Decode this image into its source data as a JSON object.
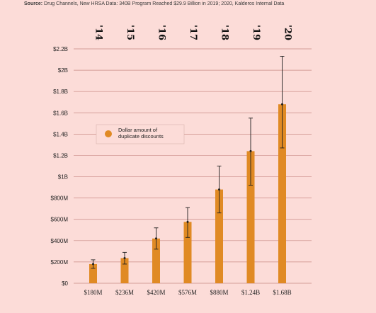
{
  "source": {
    "label": "Source:",
    "text": "Drug Channels, New HRSA Data: 340B Program Reached $29.9 Billion in 2019; 2020, Kalderos Internal Data"
  },
  "colors": {
    "background": "#fcdcd8",
    "bar": "#e08a24",
    "grid": "#c98a84",
    "error": "#1e1e1e"
  },
  "chart_data": {
    "type": "bar",
    "categories": [
      "'14",
      "'15",
      "'16",
      "'17",
      "'18",
      "'19",
      "'20"
    ],
    "category_position": "top",
    "x_tick_labels": [
      "$180M",
      "$236M",
      "$420M",
      "$576M",
      "$880M",
      "$1.24B",
      "$1.68B"
    ],
    "values": [
      180,
      236,
      420,
      576,
      880,
      1240,
      1680
    ],
    "error_low": [
      140,
      180,
      320,
      430,
      660,
      920,
      1270
    ],
    "error_high": [
      220,
      290,
      520,
      710,
      1100,
      1550,
      2130
    ],
    "unit": "millions of dollars",
    "ylim": [
      0,
      2200
    ],
    "yticks": [
      0,
      200,
      400,
      600,
      800,
      1000,
      1200,
      1400,
      1600,
      1800,
      2000,
      2200
    ],
    "ytick_labels": [
      "$0",
      "$200M",
      "$400M",
      "$600M",
      "$800M",
      "$1B",
      "$1.2B",
      "$1.4B",
      "$1.6B",
      "$1.8B",
      "$2B",
      "$2.2B"
    ],
    "legend": {
      "entries": [
        "Dollar amount of duplicate discounts"
      ],
      "lines": [
        "Dollar amount of",
        "duplicate discounts"
      ],
      "placement": "upper-left"
    },
    "grid": true,
    "title": "",
    "xlabel": "",
    "ylabel": ""
  }
}
